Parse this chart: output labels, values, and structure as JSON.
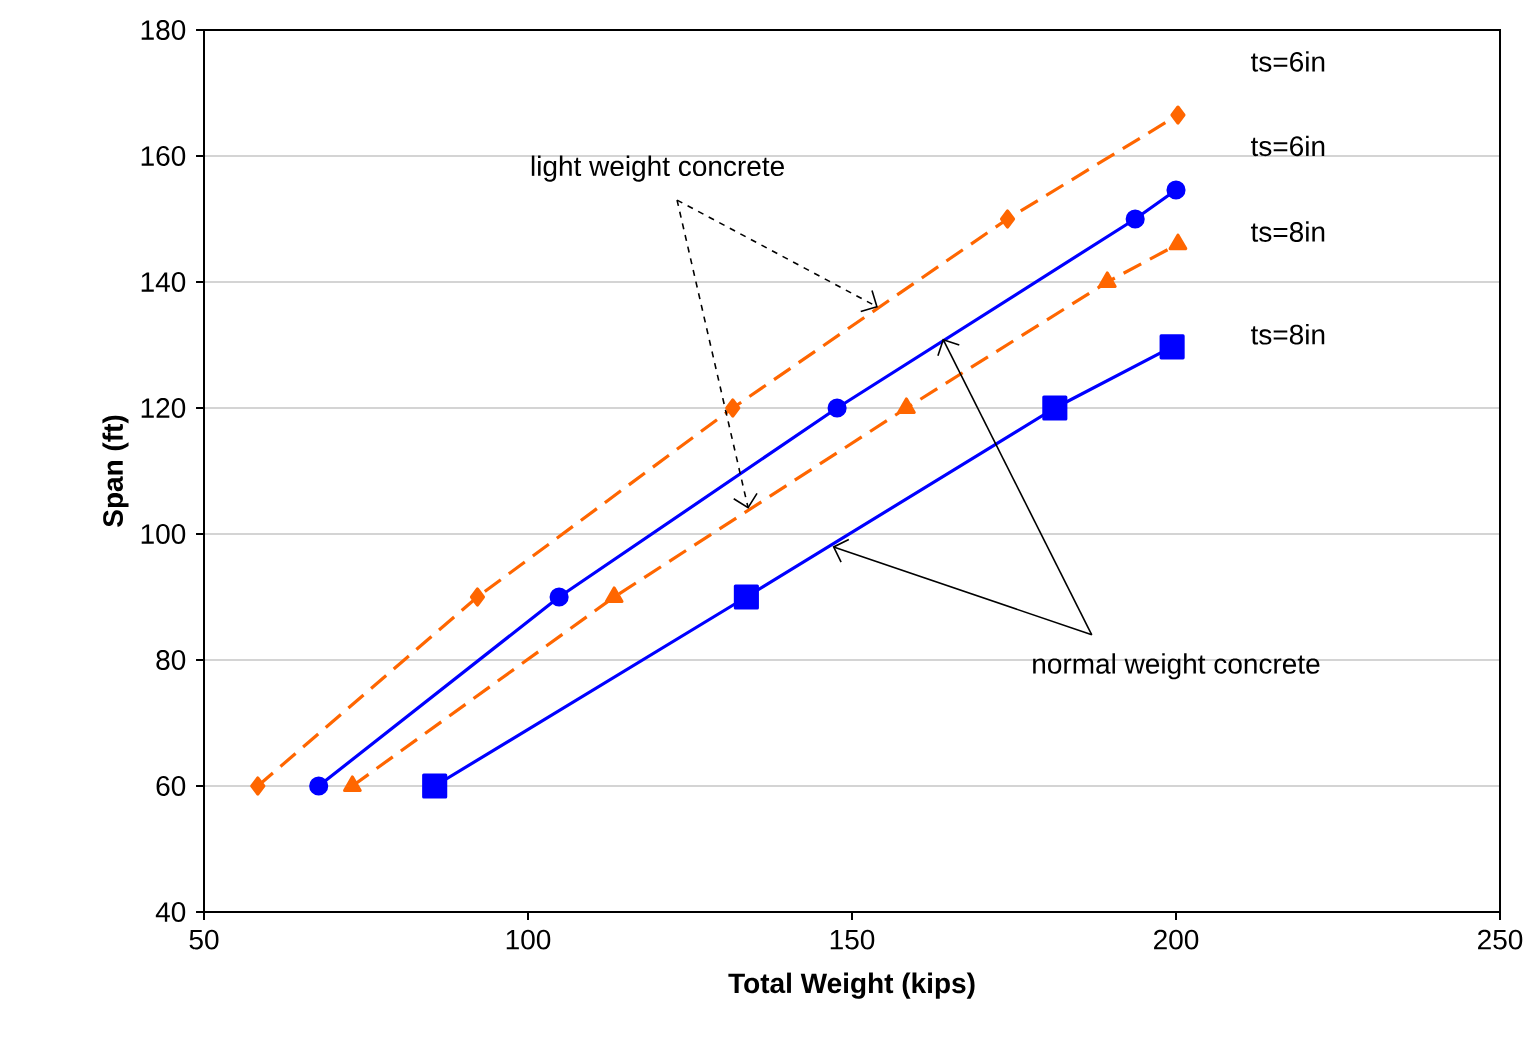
{
  "chart_data": {
    "type": "line",
    "xlabel": "Total Weight (kips)",
    "ylabel": "Span (ft)",
    "xlim": [
      50,
      250
    ],
    "xticks": [
      50,
      100,
      150,
      200,
      250
    ],
    "ylim": [
      40,
      180
    ],
    "yticks": [
      40,
      60,
      80,
      100,
      120,
      140,
      160,
      180
    ],
    "grid": "y",
    "series": [
      {
        "name": "ts=6in",
        "color": "#ff6600",
        "marker": "diamond",
        "line_style": "dashed",
        "x": [
          58.3,
          92.2,
          131.6,
          174,
          200.3
        ],
        "values": [
          60,
          90,
          120,
          150,
          166.5
        ]
      },
      {
        "name": "ts=6in",
        "color": "#0000ff",
        "marker": "circle",
        "line_style": "solid",
        "x": [
          67.7,
          104.8,
          147.7,
          193.7,
          200
        ],
        "values": [
          60,
          90,
          120,
          150,
          154.6
        ]
      },
      {
        "name": "ts=8in",
        "color": "#ff6600",
        "marker": "triangle",
        "line_style": "dashed",
        "x": [
          72.9,
          113.3,
          158.4,
          189.4,
          200.3
        ],
        "values": [
          60,
          90,
          120,
          140,
          146
        ]
      },
      {
        "name": "ts=8in",
        "color": "#0000ff",
        "marker": "square",
        "line_style": "solid",
        "x": [
          85.6,
          133.7,
          181.3,
          199.4
        ],
        "values": [
          60,
          90,
          120,
          129.7
        ]
      }
    ],
    "annotations": [
      {
        "text": "light weight concrete",
        "x": 154,
        "y": 136
      },
      {
        "text": "normal weight concrete",
        "x": 164,
        "y": 131
      }
    ]
  }
}
